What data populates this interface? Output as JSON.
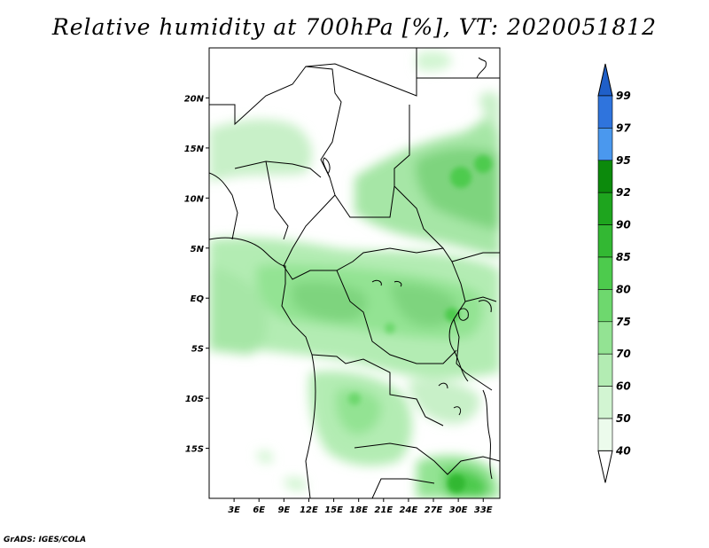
{
  "title": "Relative humidity at 700hPa [%], VT: 2020051812",
  "credit": "GrADS: IGES/COLA",
  "map": {
    "lon_range": [
      0,
      35
    ],
    "lat_range": [
      -20,
      25
    ],
    "lat_ticks": [
      "20N",
      "15N",
      "10N",
      "5N",
      "EQ",
      "5S",
      "10S",
      "15S"
    ],
    "lon_ticks": [
      "3E",
      "6E",
      "9E",
      "12E",
      "15E",
      "18E",
      "21E",
      "24E",
      "27E",
      "30E",
      "33E"
    ]
  },
  "colorbar": {
    "levels": [
      "99",
      "97",
      "95",
      "92",
      "90",
      "85",
      "80",
      "75",
      "70",
      "60",
      "50",
      "40"
    ],
    "colors": [
      "#1f5fc8",
      "#2f74dd",
      "#4a98ee",
      "#0c8a0c",
      "#1ea51e",
      "#33b833",
      "#4dcb4d",
      "#6ed86e",
      "#93e393",
      "#b3ecb3",
      "#d2f5d2",
      "#ecfbec",
      "#ffffff"
    ],
    "top_color": "#1f5fc8"
  }
}
